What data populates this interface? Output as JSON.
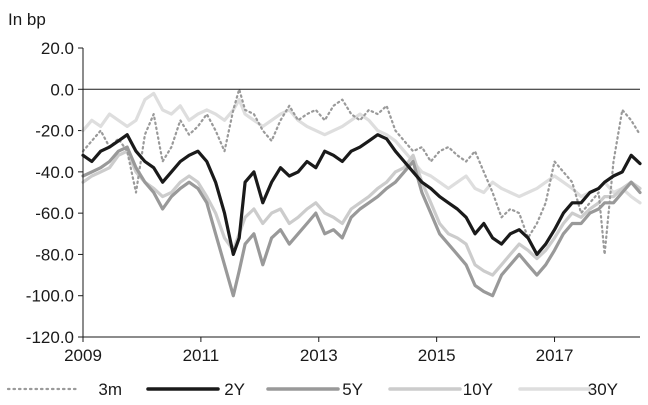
{
  "chart_data": {
    "type": "line",
    "unit_label": "In bp",
    "x_ticks": [
      "2009",
      "2011",
      "2013",
      "2015",
      "2017"
    ],
    "x_tick_values": [
      2009,
      2011,
      2013,
      2015,
      2017
    ],
    "y_ticks": [
      "20.0",
      "0.0",
      "-20.0",
      "-40.0",
      "-60.0",
      "-80.0",
      "-100.0",
      "-120.0"
    ],
    "y_tick_values": [
      20,
      0,
      -20,
      -40,
      -60,
      -80,
      -100,
      -120
    ],
    "xlim": [
      2009.0,
      2018.45
    ],
    "ylim": [
      -120,
      20
    ],
    "grid": false,
    "legend_position": "bottom",
    "series": [
      {
        "name": "3m",
        "color": "#9a9a9a",
        "style": "dotted",
        "x": [
          2009.0,
          2009.15,
          2009.3,
          2009.45,
          2009.6,
          2009.75,
          2009.9,
          2010.05,
          2010.2,
          2010.35,
          2010.5,
          2010.65,
          2010.8,
          2010.95,
          2011.1,
          2011.25,
          2011.4,
          2011.55,
          2011.65,
          2011.75,
          2011.9,
          2012.05,
          2012.2,
          2012.35,
          2012.5,
          2012.65,
          2012.8,
          2012.95,
          2013.1,
          2013.25,
          2013.4,
          2013.55,
          2013.7,
          2013.85,
          2014.0,
          2014.15,
          2014.3,
          2014.45,
          2014.6,
          2014.75,
          2014.9,
          2015.05,
          2015.2,
          2015.35,
          2015.5,
          2015.65,
          2015.8,
          2015.95,
          2016.1,
          2016.25,
          2016.4,
          2016.55,
          2016.7,
          2016.85,
          2017.0,
          2017.15,
          2017.3,
          2017.45,
          2017.6,
          2017.75,
          2017.85,
          2018.0,
          2018.15,
          2018.3,
          2018.45
        ],
        "values": [
          -30,
          -25,
          -20,
          -28,
          -24,
          -30,
          -50,
          -22,
          -12,
          -35,
          -28,
          -15,
          -22,
          -18,
          -12,
          -20,
          -30,
          -10,
          0,
          -10,
          -12,
          -20,
          -25,
          -15,
          -8,
          -15,
          -12,
          -10,
          -15,
          -8,
          -5,
          -12,
          -15,
          -10,
          -12,
          -8,
          -20,
          -25,
          -30,
          -28,
          -35,
          -30,
          -28,
          -32,
          -35,
          -30,
          -40,
          -50,
          -62,
          -58,
          -60,
          -72,
          -65,
          -55,
          -35,
          -40,
          -45,
          -60,
          -55,
          -50,
          -80,
          -35,
          -10,
          -15,
          -22
        ]
      },
      {
        "name": "2Y",
        "color": "#1a1a1a",
        "style": "solid",
        "x": [
          2009.0,
          2009.15,
          2009.3,
          2009.45,
          2009.6,
          2009.75,
          2009.9,
          2010.05,
          2010.2,
          2010.35,
          2010.5,
          2010.65,
          2010.8,
          2010.95,
          2011.1,
          2011.25,
          2011.4,
          2011.55,
          2011.65,
          2011.75,
          2011.9,
          2012.05,
          2012.2,
          2012.35,
          2012.5,
          2012.65,
          2012.8,
          2012.95,
          2013.1,
          2013.25,
          2013.4,
          2013.55,
          2013.7,
          2013.85,
          2014.0,
          2014.15,
          2014.3,
          2014.45,
          2014.6,
          2014.75,
          2014.9,
          2015.05,
          2015.2,
          2015.35,
          2015.5,
          2015.65,
          2015.8,
          2015.95,
          2016.1,
          2016.25,
          2016.4,
          2016.55,
          2016.7,
          2016.85,
          2017.0,
          2017.15,
          2017.3,
          2017.45,
          2017.6,
          2017.75,
          2017.85,
          2018.0,
          2018.15,
          2018.3,
          2018.45
        ],
        "values": [
          -32,
          -35,
          -30,
          -28,
          -25,
          -22,
          -30,
          -35,
          -38,
          -45,
          -40,
          -35,
          -32,
          -30,
          -35,
          -45,
          -60,
          -80,
          -72,
          -45,
          -40,
          -55,
          -45,
          -38,
          -42,
          -40,
          -35,
          -38,
          -30,
          -32,
          -35,
          -30,
          -28,
          -25,
          -22,
          -24,
          -30,
          -35,
          -40,
          -45,
          -48,
          -52,
          -55,
          -58,
          -62,
          -70,
          -65,
          -72,
          -75,
          -70,
          -68,
          -72,
          -80,
          -75,
          -68,
          -60,
          -55,
          -55,
          -50,
          -48,
          -45,
          -42,
          -40,
          -32,
          -36
        ]
      },
      {
        "name": "5Y",
        "color": "#999999",
        "style": "solid",
        "x": [
          2009.0,
          2009.15,
          2009.3,
          2009.45,
          2009.6,
          2009.75,
          2009.9,
          2010.05,
          2010.2,
          2010.35,
          2010.5,
          2010.65,
          2010.8,
          2010.95,
          2011.1,
          2011.25,
          2011.4,
          2011.55,
          2011.65,
          2011.75,
          2011.9,
          2012.05,
          2012.2,
          2012.35,
          2012.5,
          2012.65,
          2012.8,
          2012.95,
          2013.1,
          2013.25,
          2013.4,
          2013.55,
          2013.7,
          2013.85,
          2014.0,
          2014.15,
          2014.3,
          2014.45,
          2014.6,
          2014.75,
          2014.9,
          2015.05,
          2015.2,
          2015.35,
          2015.5,
          2015.65,
          2015.8,
          2015.95,
          2016.1,
          2016.25,
          2016.4,
          2016.55,
          2016.7,
          2016.85,
          2017.0,
          2017.15,
          2017.3,
          2017.45,
          2017.6,
          2017.75,
          2017.85,
          2018.0,
          2018.15,
          2018.3,
          2018.45
        ],
        "values": [
          -42,
          -40,
          -38,
          -35,
          -30,
          -28,
          -38,
          -45,
          -50,
          -58,
          -52,
          -48,
          -45,
          -48,
          -55,
          -70,
          -85,
          -100,
          -88,
          -75,
          -70,
          -85,
          -72,
          -68,
          -75,
          -70,
          -65,
          -60,
          -70,
          -68,
          -72,
          -62,
          -58,
          -55,
          -52,
          -48,
          -45,
          -40,
          -35,
          -50,
          -60,
          -70,
          -75,
          -80,
          -85,
          -95,
          -98,
          -100,
          -90,
          -85,
          -80,
          -85,
          -90,
          -85,
          -78,
          -70,
          -65,
          -65,
          -60,
          -58,
          -55,
          -55,
          -50,
          -45,
          -50
        ]
      },
      {
        "name": "10Y",
        "color": "#cccccc",
        "style": "solid",
        "x": [
          2009.0,
          2009.15,
          2009.3,
          2009.45,
          2009.6,
          2009.75,
          2009.9,
          2010.05,
          2010.2,
          2010.35,
          2010.5,
          2010.65,
          2010.8,
          2010.95,
          2011.1,
          2011.25,
          2011.4,
          2011.55,
          2011.65,
          2011.75,
          2011.9,
          2012.05,
          2012.2,
          2012.35,
          2012.5,
          2012.65,
          2012.8,
          2012.95,
          2013.1,
          2013.25,
          2013.4,
          2013.55,
          2013.7,
          2013.85,
          2014.0,
          2014.15,
          2014.3,
          2014.45,
          2014.6,
          2014.75,
          2014.9,
          2015.05,
          2015.2,
          2015.35,
          2015.5,
          2015.65,
          2015.8,
          2015.95,
          2016.1,
          2016.25,
          2016.4,
          2016.55,
          2016.7,
          2016.85,
          2017.0,
          2017.15,
          2017.3,
          2017.45,
          2017.6,
          2017.75,
          2017.85,
          2018.0,
          2018.15,
          2018.3,
          2018.45
        ],
        "values": [
          -45,
          -42,
          -40,
          -38,
          -32,
          -30,
          -40,
          -45,
          -48,
          -52,
          -50,
          -45,
          -42,
          -45,
          -52,
          -60,
          -72,
          -78,
          -70,
          -62,
          -58,
          -65,
          -60,
          -58,
          -65,
          -62,
          -58,
          -55,
          -60,
          -62,
          -65,
          -58,
          -55,
          -52,
          -48,
          -45,
          -40,
          -38,
          -32,
          -45,
          -55,
          -65,
          -70,
          -72,
          -75,
          -85,
          -88,
          -90,
          -85,
          -80,
          -75,
          -78,
          -82,
          -78,
          -72,
          -65,
          -60,
          -62,
          -58,
          -55,
          -52,
          -52,
          -48,
          -45,
          -48
        ]
      },
      {
        "name": "30Y",
        "color": "#dedede",
        "style": "solid",
        "x": [
          2009.0,
          2009.15,
          2009.3,
          2009.45,
          2009.6,
          2009.75,
          2009.9,
          2010.05,
          2010.2,
          2010.35,
          2010.5,
          2010.65,
          2010.8,
          2010.95,
          2011.1,
          2011.25,
          2011.4,
          2011.55,
          2011.65,
          2011.75,
          2011.9,
          2012.05,
          2012.2,
          2012.35,
          2012.5,
          2012.65,
          2012.8,
          2012.95,
          2013.1,
          2013.25,
          2013.4,
          2013.55,
          2013.7,
          2013.85,
          2014.0,
          2014.15,
          2014.3,
          2014.45,
          2014.6,
          2014.75,
          2014.9,
          2015.05,
          2015.2,
          2015.35,
          2015.5,
          2015.65,
          2015.8,
          2015.95,
          2016.1,
          2016.25,
          2016.4,
          2016.55,
          2016.7,
          2016.85,
          2017.0,
          2017.15,
          2017.3,
          2017.45,
          2017.6,
          2017.75,
          2017.85,
          2018.0,
          2018.15,
          2018.3,
          2018.45
        ],
        "values": [
          -20,
          -15,
          -18,
          -12,
          -15,
          -18,
          -15,
          -5,
          -2,
          -10,
          -12,
          -8,
          -15,
          -12,
          -10,
          -12,
          -15,
          -10,
          -5,
          -12,
          -15,
          -18,
          -15,
          -12,
          -10,
          -15,
          -18,
          -20,
          -22,
          -20,
          -18,
          -15,
          -12,
          -15,
          -20,
          -22,
          -25,
          -30,
          -35,
          -40,
          -42,
          -45,
          -48,
          -45,
          -42,
          -48,
          -50,
          -45,
          -48,
          -50,
          -52,
          -50,
          -48,
          -45,
          -42,
          -45,
          -48,
          -52,
          -50,
          -48,
          -45,
          -50,
          -48,
          -52,
          -55
        ]
      }
    ]
  }
}
